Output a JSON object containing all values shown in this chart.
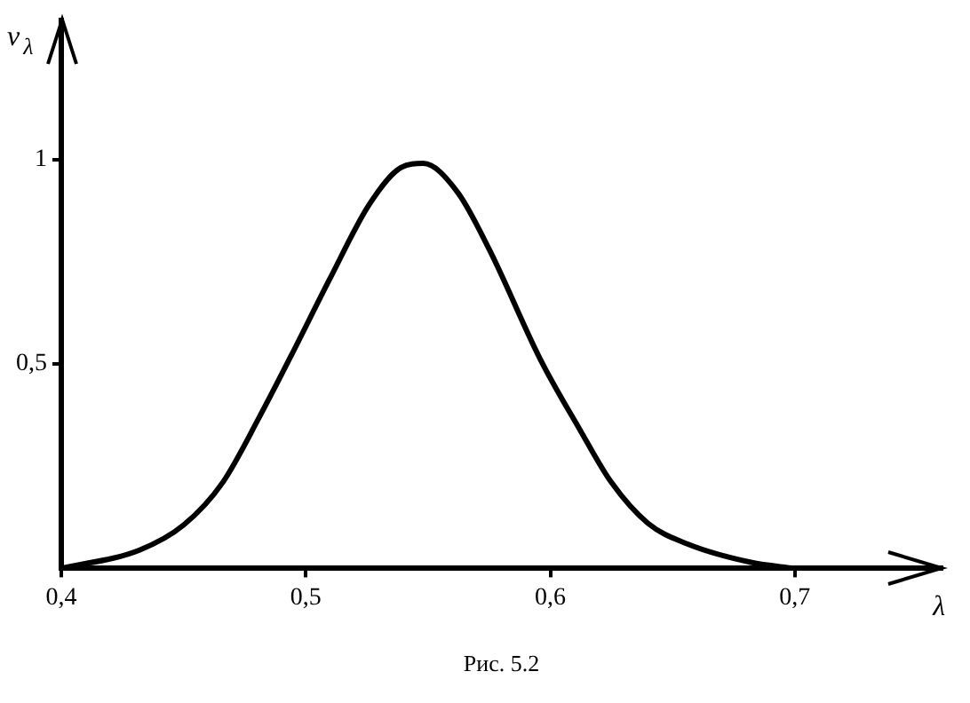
{
  "chart_data": {
    "type": "line",
    "xlabel": "λ",
    "ylabel": "v$_{λ}$",
    "annotations": [
      "Рис. 5.2"
    ],
    "x": [
      0.4,
      0.432,
      0.45,
      0.466,
      0.481,
      0.494,
      0.51,
      0.526,
      0.539,
      0.548,
      0.562,
      0.575,
      0.596,
      0.612,
      0.625,
      0.64,
      0.656,
      0.682,
      0.7
    ],
    "series": [
      {
        "color": "#000000",
        "values": [
          0,
          0.045,
          0.106,
          0.21,
          0.37,
          0.52,
          0.71,
          0.89,
          0.98,
          0.99,
          0.92,
          0.78,
          0.51,
          0.34,
          0.21,
          0.11,
          0.06,
          0.015,
          0
        ]
      }
    ],
    "xlim": [
      0.4,
      0.76
    ],
    "ylim": [
      0,
      1.34
    ],
    "xticks": [
      {
        "value": 0.4,
        "label": "0,4"
      },
      {
        "value": 0.5,
        "label": "0,5"
      },
      {
        "value": 0.6,
        "label": "0,6"
      },
      {
        "value": 0.7,
        "label": "0,7"
      }
    ],
    "yticks": [
      {
        "value": 0.5,
        "label": "0,5"
      },
      {
        "value": 1,
        "label": "1"
      }
    ],
    "grid": false,
    "legend": false,
    "marker": "none",
    "line_style": "solid"
  }
}
